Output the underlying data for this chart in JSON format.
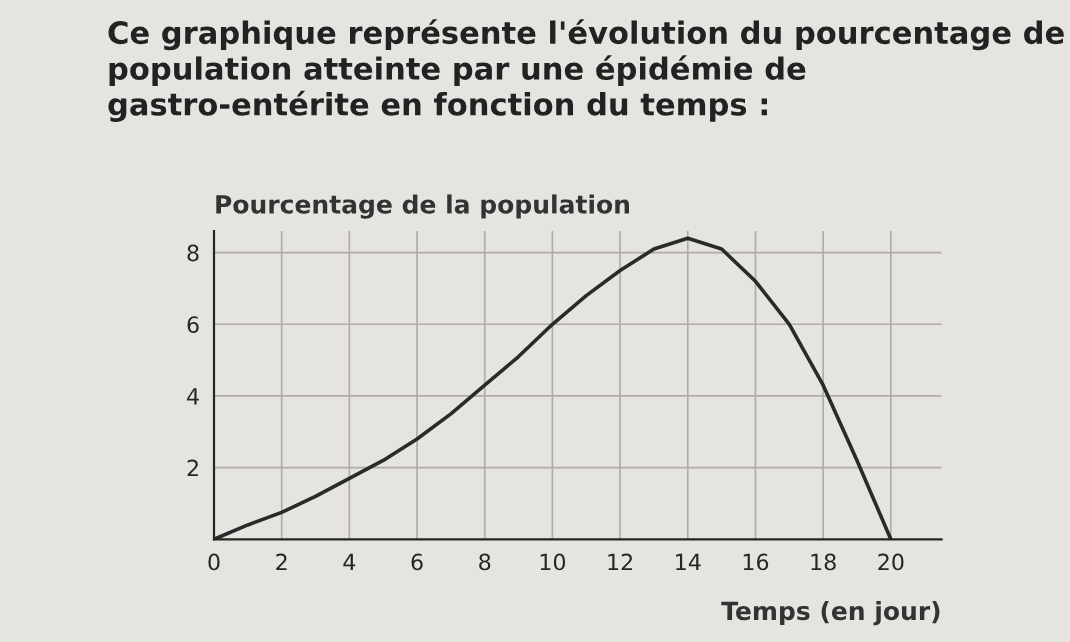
{
  "chart_data": {
    "type": "line",
    "title": "Ce graphique représente l'évolution du pourcentage de population atteinte par une épidémie de gastro-entérite en fonction du temps :",
    "ylabel": "Pourcentage de la population",
    "xlabel": "Temps (en jour)",
    "x": [
      0,
      1,
      2,
      3,
      4,
      5,
      6,
      7,
      8,
      9,
      10,
      11,
      12,
      13,
      14,
      15,
      16,
      17,
      18,
      19,
      20
    ],
    "series": [
      {
        "color": "#2a2a2a",
        "values": [
          0,
          0.4,
          0.75,
          1.2,
          1.7,
          2.2,
          2.8,
          3.5,
          4.3,
          5.1,
          6.0,
          6.8,
          7.5,
          8.1,
          8.4,
          8.1,
          7.2,
          6.0,
          4.3,
          2.2,
          0
        ]
      }
    ],
    "xlim": [
      0,
      21.5
    ],
    "ylim": [
      0,
      8.6
    ],
    "xticks": [
      0,
      2,
      4,
      6,
      8,
      10,
      12,
      14,
      16,
      18,
      20
    ],
    "yticks": [
      2,
      4,
      6,
      8
    ],
    "grid": true,
    "marker": "none",
    "line_style": "solid"
  }
}
